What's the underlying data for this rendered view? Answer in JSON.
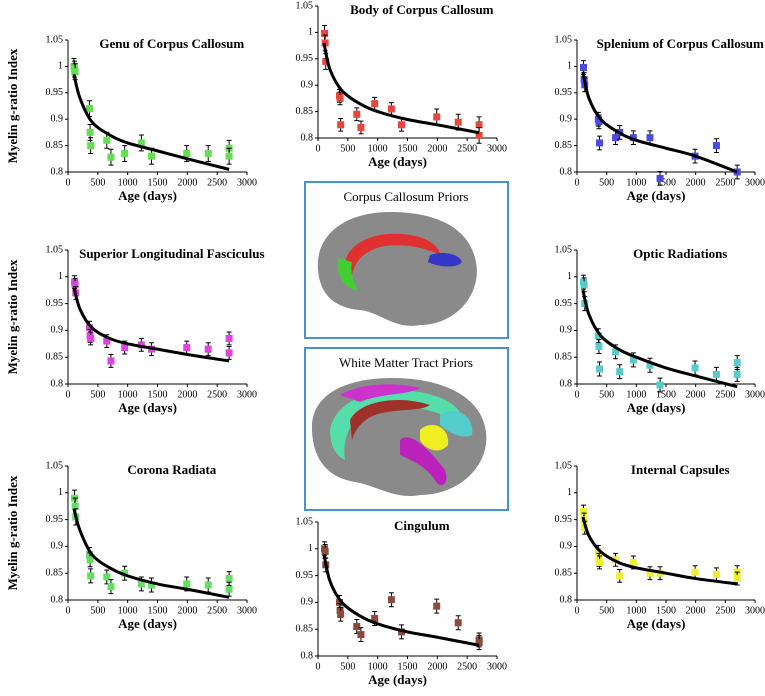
{
  "chart_data": [
    {
      "type": "scatter",
      "title": "Genu of Corpus Callosum",
      "xlabel": "Age (days)",
      "ylabel": "Myelin g-ratio Index",
      "xlim": [
        0,
        3000
      ],
      "xticks": [
        0,
        500,
        1000,
        1500,
        2000,
        2500,
        3000
      ],
      "ylim": [
        0.8,
        1.05
      ],
      "yticks": [
        0.8,
        0.85,
        0.9,
        0.95,
        1,
        1.05
      ],
      "color": "#66dd55",
      "x": [
        100,
        110,
        120,
        360,
        370,
        380,
        650,
        720,
        950,
        1230,
        1400,
        1990,
        2350,
        2700,
        2700
      ],
      "values": [
        1.0,
        0.995,
        0.99,
        0.92,
        0.875,
        0.85,
        0.86,
        0.828,
        0.835,
        0.855,
        0.83,
        0.835,
        0.835,
        0.845,
        0.83
      ],
      "errors": [
        0.015,
        0.015,
        0.015,
        0.015,
        0.015,
        0.015,
        0.015,
        0.015,
        0.015,
        0.015,
        0.015,
        0.015,
        0.015,
        0.015,
        0.015
      ],
      "fit": {
        "x": [
          100,
          200,
          400,
          700,
          1000,
          1500,
          2000,
          2700
        ],
        "values": [
          0.985,
          0.94,
          0.895,
          0.87,
          0.855,
          0.84,
          0.825,
          0.805
        ]
      }
    },
    {
      "type": "scatter",
      "title": "Body of Corpus Callosum",
      "xlabel": "Age (days)",
      "xlim": [
        0,
        3000
      ],
      "xticks": [
        0,
        500,
        1000,
        1500,
        2000,
        2500,
        3000
      ],
      "ylim": [
        0.8,
        1.05
      ],
      "yticks": [
        0.8,
        0.85,
        0.9,
        0.95,
        1,
        1.05
      ],
      "color": "#e8453c",
      "x": [
        110,
        120,
        130,
        360,
        370,
        380,
        650,
        720,
        950,
        1230,
        1400,
        1990,
        2350,
        2700,
        2700
      ],
      "values": [
        0.998,
        0.98,
        0.945,
        0.88,
        0.875,
        0.825,
        0.845,
        0.82,
        0.865,
        0.855,
        0.825,
        0.84,
        0.83,
        0.825,
        0.805
      ],
      "errors": [
        0.015,
        0.015,
        0.015,
        0.012,
        0.012,
        0.012,
        0.012,
        0.012,
        0.012,
        0.012,
        0.012,
        0.015,
        0.015,
        0.015,
        0.015
      ],
      "fit": {
        "x": [
          100,
          200,
          400,
          700,
          1000,
          1500,
          2000,
          2700
        ],
        "values": [
          0.98,
          0.93,
          0.89,
          0.865,
          0.85,
          0.835,
          0.825,
          0.81
        ]
      }
    },
    {
      "type": "scatter",
      "title": "Splenium of Corpus Callosum",
      "xlabel": "Age (days)",
      "xlim": [
        0,
        3000
      ],
      "xticks": [
        0,
        500,
        1000,
        1500,
        2000,
        2500,
        3000
      ],
      "ylim": [
        0.8,
        1.05
      ],
      "yticks": [
        0.8,
        0.85,
        0.9,
        0.95,
        1,
        1.05
      ],
      "color": "#4a4adb",
      "x": [
        110,
        120,
        130,
        360,
        370,
        380,
        650,
        720,
        950,
        1230,
        1400,
        1990,
        2350,
        2700
      ],
      "values": [
        0.998,
        0.975,
        0.965,
        0.9,
        0.895,
        0.855,
        0.865,
        0.875,
        0.865,
        0.865,
        0.788,
        0.83,
        0.85,
        0.8
      ],
      "errors": [
        0.013,
        0.013,
        0.013,
        0.013,
        0.013,
        0.013,
        0.013,
        0.013,
        0.013,
        0.013,
        0.013,
        0.013,
        0.013,
        0.013
      ],
      "fit": {
        "x": [
          100,
          200,
          400,
          700,
          1000,
          1500,
          2000,
          2700
        ],
        "values": [
          0.99,
          0.94,
          0.9,
          0.875,
          0.86,
          0.845,
          0.83,
          0.8
        ]
      }
    },
    {
      "type": "scatter",
      "title": "Superior Longitudinal Fasciculus",
      "xlabel": "Age (days)",
      "ylabel": "Myelin g-ratio Index",
      "xlim": [
        0,
        3000
      ],
      "xticks": [
        0,
        500,
        1000,
        1500,
        2000,
        2500,
        3000
      ],
      "ylim": [
        0.8,
        1.05
      ],
      "yticks": [
        0.8,
        0.85,
        0.9,
        0.95,
        1,
        1.05
      ],
      "color": "#dd44dd",
      "x": [
        110,
        120,
        130,
        360,
        370,
        380,
        650,
        720,
        950,
        1230,
        1400,
        1990,
        2350,
        2700,
        2700
      ],
      "values": [
        0.99,
        0.985,
        0.97,
        0.905,
        0.89,
        0.885,
        0.88,
        0.843,
        0.868,
        0.873,
        0.865,
        0.868,
        0.865,
        0.885,
        0.858
      ],
      "errors": [
        0.012,
        0.012,
        0.012,
        0.012,
        0.012,
        0.012,
        0.012,
        0.012,
        0.012,
        0.012,
        0.012,
        0.012,
        0.012,
        0.012,
        0.012
      ],
      "fit": {
        "x": [
          100,
          200,
          400,
          700,
          1000,
          1500,
          2000,
          2700
        ],
        "values": [
          0.98,
          0.94,
          0.905,
          0.885,
          0.875,
          0.865,
          0.855,
          0.843
        ]
      }
    },
    {
      "type": "scatter",
      "title": "Optic Radiations",
      "xlabel": "Age (days)",
      "xlim": [
        0,
        3000
      ],
      "xticks": [
        0,
        500,
        1000,
        1500,
        2000,
        2500,
        3000
      ],
      "ylim": [
        0.8,
        1.05
      ],
      "yticks": [
        0.8,
        0.85,
        0.9,
        0.95,
        1,
        1.05
      ],
      "color": "#55cccc",
      "x": [
        110,
        120,
        130,
        360,
        370,
        380,
        650,
        720,
        950,
        1230,
        1400,
        1990,
        2350,
        2700,
        2700
      ],
      "values": [
        0.99,
        0.985,
        0.95,
        0.89,
        0.87,
        0.828,
        0.86,
        0.823,
        0.845,
        0.835,
        0.798,
        0.83,
        0.818,
        0.84,
        0.818
      ],
      "errors": [
        0.013,
        0.013,
        0.013,
        0.013,
        0.013,
        0.013,
        0.013,
        0.013,
        0.013,
        0.013,
        0.013,
        0.013,
        0.013,
        0.013,
        0.013
      ],
      "fit": {
        "x": [
          100,
          200,
          400,
          700,
          1000,
          1500,
          2000,
          2700
        ],
        "values": [
          0.975,
          0.93,
          0.89,
          0.865,
          0.85,
          0.83,
          0.815,
          0.795
        ]
      }
    },
    {
      "type": "scatter",
      "title": "Corona Radiata",
      "xlabel": "Age (days)",
      "ylabel": "Myelin g-ratio Index",
      "xlim": [
        0,
        3000
      ],
      "xticks": [
        0,
        500,
        1000,
        1500,
        2000,
        2500,
        3000
      ],
      "ylim": [
        0.8,
        1.05
      ],
      "yticks": [
        0.8,
        0.85,
        0.9,
        0.95,
        1,
        1.05
      ],
      "color": "#66dd66",
      "x": [
        110,
        120,
        130,
        360,
        370,
        380,
        650,
        720,
        950,
        1230,
        1400,
        1990,
        2350,
        2700,
        2700
      ],
      "values": [
        0.99,
        0.975,
        0.955,
        0.885,
        0.875,
        0.845,
        0.843,
        0.825,
        0.85,
        0.83,
        0.828,
        0.83,
        0.828,
        0.84,
        0.82
      ],
      "errors": [
        0.015,
        0.015,
        0.015,
        0.013,
        0.013,
        0.013,
        0.013,
        0.013,
        0.013,
        0.013,
        0.013,
        0.013,
        0.013,
        0.013,
        0.013
      ],
      "fit": {
        "x": [
          100,
          200,
          400,
          700,
          1000,
          1500,
          2000,
          2700
        ],
        "values": [
          0.97,
          0.93,
          0.885,
          0.86,
          0.845,
          0.83,
          0.82,
          0.805
        ]
      }
    },
    {
      "type": "scatter",
      "title": "Cingulum",
      "xlabel": "Age (days)",
      "xlim": [
        0,
        3000
      ],
      "xticks": [
        0,
        500,
        1000,
        1500,
        2000,
        2500,
        3000
      ],
      "ylim": [
        0.8,
        1.05
      ],
      "yticks": [
        0.8,
        0.85,
        0.9,
        0.95,
        1,
        1.05
      ],
      "color": "#8b4a3c",
      "x": [
        110,
        120,
        130,
        360,
        370,
        380,
        650,
        720,
        950,
        1230,
        1400,
        1990,
        2350,
        2700,
        2700
      ],
      "values": [
        1.0,
        0.995,
        0.97,
        0.9,
        0.885,
        0.878,
        0.855,
        0.84,
        0.87,
        0.905,
        0.845,
        0.893,
        0.862,
        0.83,
        0.825
      ],
      "errors": [
        0.013,
        0.013,
        0.013,
        0.013,
        0.013,
        0.013,
        0.013,
        0.013,
        0.013,
        0.013,
        0.013,
        0.013,
        0.013,
        0.013,
        0.013
      ],
      "fit": {
        "x": [
          100,
          200,
          400,
          700,
          1000,
          1500,
          2000,
          2700
        ],
        "values": [
          0.99,
          0.94,
          0.9,
          0.875,
          0.86,
          0.845,
          0.835,
          0.82
        ]
      }
    },
    {
      "type": "scatter",
      "title": "Internal Capsules",
      "xlabel": "Age (days)",
      "xlim": [
        0,
        3000
      ],
      "xticks": [
        0,
        500,
        1000,
        1500,
        2000,
        2500,
        3000
      ],
      "ylim": [
        0.8,
        1.05
      ],
      "yticks": [
        0.8,
        0.85,
        0.9,
        0.95,
        1,
        1.05
      ],
      "color": "#eeee33",
      "x": [
        110,
        120,
        130,
        360,
        370,
        380,
        650,
        720,
        950,
        1230,
        1400,
        1990,
        2350,
        2700,
        2700
      ],
      "values": [
        0.965,
        0.95,
        0.935,
        0.89,
        0.875,
        0.87,
        0.875,
        0.845,
        0.87,
        0.85,
        0.85,
        0.852,
        0.848,
        0.852,
        0.84
      ],
      "errors": [
        0.012,
        0.012,
        0.012,
        0.012,
        0.012,
        0.012,
        0.012,
        0.012,
        0.012,
        0.012,
        0.012,
        0.012,
        0.012,
        0.012,
        0.012
      ],
      "fit": {
        "x": [
          100,
          200,
          400,
          700,
          1000,
          1500,
          2000,
          2700
        ],
        "values": [
          0.955,
          0.92,
          0.89,
          0.87,
          0.86,
          0.85,
          0.84,
          0.83
        ]
      }
    }
  ],
  "images": [
    {
      "caption": "Corpus Callosum Priors"
    },
    {
      "caption": "White Matter Tract Priors"
    }
  ]
}
